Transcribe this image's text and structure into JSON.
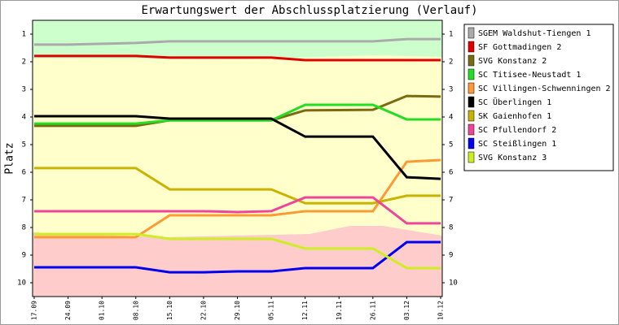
{
  "chart_data": {
    "type": "line",
    "title": "Erwartungswert der Abschlussplatzierung (Verlauf)",
    "y_label": "Platz",
    "categories": [
      "17.09",
      "24.09",
      "01.10",
      "08.10",
      "15.10",
      "22.10",
      "29.10",
      "05.11",
      "12.11",
      "19.11",
      "26.11",
      "03.12",
      "10.12"
    ],
    "ylim": [
      0.5,
      10.5
    ],
    "y_inverted": true,
    "yticks": [
      1,
      2,
      3,
      4,
      5,
      6,
      7,
      8,
      9,
      10
    ],
    "series": [
      {
        "name": "SGEM Waldshut-Tiengen 1",
        "color": "#aaaaaa",
        "values": [
          1.38,
          1.38,
          1.35,
          1.32,
          1.26,
          1.26,
          1.26,
          1.26,
          1.26,
          1.26,
          1.26,
          1.18,
          1.18
        ]
      },
      {
        "name": "SF Gottmadingen 2",
        "color": "#e00000",
        "values": [
          1.79,
          1.79,
          1.79,
          1.79,
          1.85,
          1.85,
          1.85,
          1.85,
          1.94,
          1.94,
          1.94,
          1.94,
          1.94
        ]
      },
      {
        "name": "SVG Konstanz 2",
        "color": "#7a6a10",
        "values": [
          4.32,
          4.32,
          4.32,
          4.32,
          4.12,
          4.12,
          4.12,
          4.12,
          3.76,
          3.75,
          3.74,
          3.24,
          3.26
        ]
      },
      {
        "name": "SC Titisee-Neustadt 1",
        "color": "#22dd22",
        "values": [
          4.24,
          4.24,
          4.24,
          4.24,
          4.12,
          4.12,
          4.12,
          4.12,
          3.56,
          3.56,
          3.56,
          4.09,
          4.09
        ]
      },
      {
        "name": "SC Villingen-Schwenningen 2",
        "color": "#ff9933",
        "values": [
          8.35,
          8.35,
          8.35,
          8.35,
          7.56,
          7.56,
          7.56,
          7.56,
          7.41,
          7.41,
          7.41,
          5.62,
          5.56
        ]
      },
      {
        "name": "SC Überlingen 1",
        "color": "#000000",
        "values": [
          3.97,
          3.97,
          3.97,
          3.97,
          4.06,
          4.06,
          4.06,
          4.06,
          4.71,
          4.71,
          4.71,
          6.18,
          6.24
        ]
      },
      {
        "name": "SK Gaienhofen 1",
        "color": "#c8b400",
        "values": [
          5.85,
          5.85,
          5.85,
          5.85,
          6.62,
          6.62,
          6.62,
          6.62,
          7.12,
          7.12,
          7.12,
          6.85,
          6.85
        ]
      },
      {
        "name": "SC Pfullendorf 2",
        "color": "#ee4499",
        "values": [
          7.41,
          7.41,
          7.41,
          7.41,
          7.41,
          7.41,
          7.44,
          7.41,
          6.91,
          6.91,
          6.91,
          7.85,
          7.85
        ]
      },
      {
        "name": "SC Steißlingen 1",
        "color": "#0000ee",
        "values": [
          9.44,
          9.44,
          9.44,
          9.44,
          9.62,
          9.62,
          9.59,
          9.59,
          9.47,
          9.47,
          9.47,
          8.53,
          8.53
        ]
      },
      {
        "name": "SVG Konstanz 3",
        "color": "#ccee22",
        "values": [
          8.24,
          8.24,
          8.24,
          8.24,
          8.41,
          8.41,
          8.41,
          8.41,
          8.76,
          8.76,
          8.76,
          9.47,
          9.47
        ]
      }
    ]
  }
}
